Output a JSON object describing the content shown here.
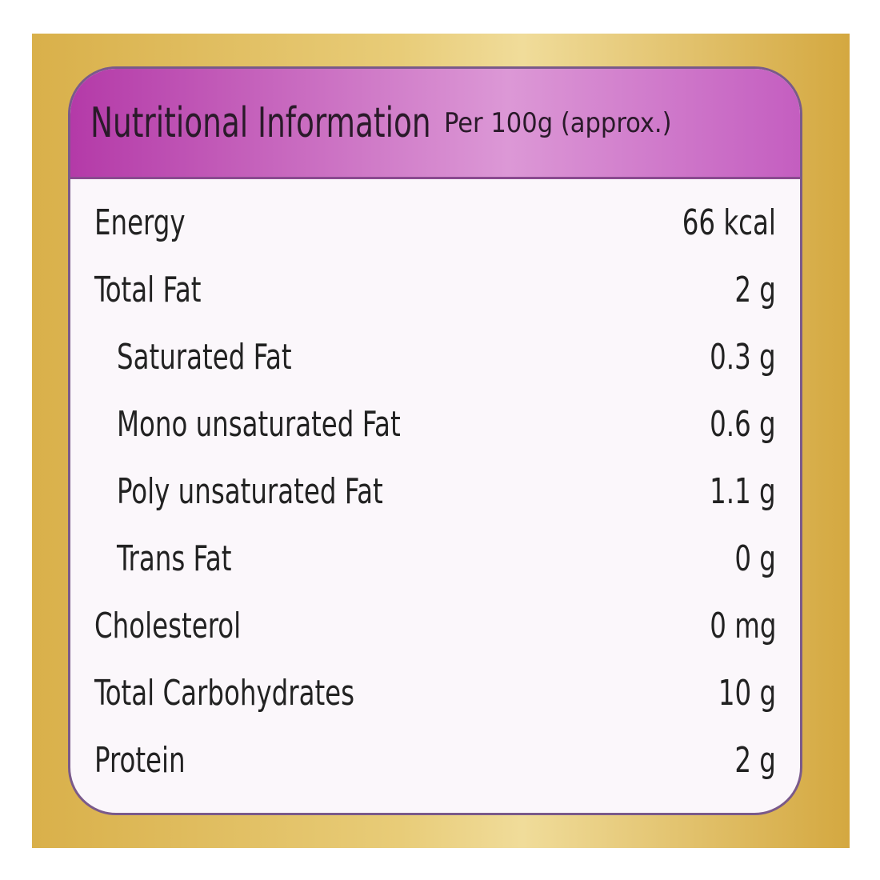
{
  "header": {
    "title": "Nutritional Information",
    "subtitle": "Per 100g (approx.)"
  },
  "table": {
    "rows": [
      [
        "Energy",
        "66 kcal"
      ],
      [
        "Total Fat",
        "2 g"
      ],
      [
        "Saturated Fat",
        "0.3 g"
      ],
      [
        "Mono unsaturated Fat",
        "0.6 g"
      ],
      [
        "Poly unsaturated Fat",
        "1.1 g"
      ],
      [
        "Trans Fat",
        "0 g"
      ],
      [
        "Cholesterol",
        "0 mg"
      ],
      [
        "Total Carbohydrates",
        "10 g"
      ],
      [
        "Protein",
        "2 g"
      ]
    ],
    "indented": [
      false,
      false,
      true,
      true,
      true,
      true,
      false,
      false,
      false
    ]
  }
}
